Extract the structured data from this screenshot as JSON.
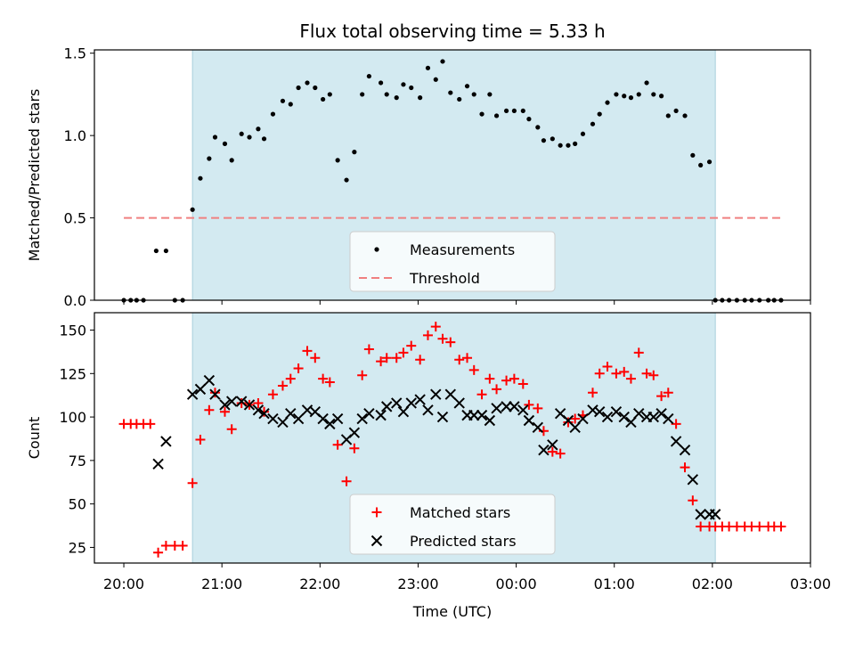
{
  "chart_data": [
    {
      "type": "scatter",
      "title": "Flux total observing time = 5.33 h",
      "xlabel": "",
      "ylabel": "Matched/Predicted stars",
      "xlim": [
        19.7,
        27.0
      ],
      "ylim": [
        0,
        1.52
      ],
      "yticks": [
        0.0,
        0.5,
        1.0,
        1.5
      ],
      "ytick_labels": [
        "0.0",
        "0.5",
        "1.0",
        "1.5"
      ],
      "x_time_unit": "hours since 20:00 UTC of first day (values > 24 wrap past midnight)",
      "shaded_interval": {
        "x": [
          20.7,
          26.03
        ],
        "color": "#d3eaf1"
      },
      "series": [
        {
          "name": "Measurements",
          "marker": "dot",
          "color": "#000000",
          "x": [
            20.0,
            20.07,
            20.13,
            20.2,
            20.33,
            20.43,
            20.52,
            20.6,
            20.7,
            20.78,
            20.87,
            20.93,
            21.03,
            21.1,
            21.2,
            21.28,
            21.37,
            21.43,
            21.52,
            21.62,
            21.7,
            21.78,
            21.87,
            21.95,
            22.03,
            22.1,
            22.18,
            22.27,
            22.35,
            22.43,
            22.5,
            22.62,
            22.68,
            22.78,
            22.85,
            22.93,
            23.02,
            23.1,
            23.18,
            23.25,
            23.33,
            23.42,
            23.5,
            23.57,
            23.65,
            23.73,
            23.8,
            23.9,
            23.98,
            24.07,
            24.13,
            24.22,
            24.28,
            24.37,
            24.45,
            24.53,
            24.6,
            24.68,
            24.78,
            24.85,
            24.93,
            25.02,
            25.1,
            25.17,
            25.25,
            25.33,
            25.4,
            25.48,
            25.55,
            25.63,
            25.72,
            25.8,
            25.88,
            25.97,
            26.03,
            26.1,
            26.17,
            26.25,
            26.33,
            26.4,
            26.48,
            26.57,
            26.63,
            26.7
          ],
          "y": [
            0.0,
            0.0,
            0.0,
            0.0,
            0.3,
            0.3,
            0.0,
            0.0,
            0.55,
            0.74,
            0.86,
            0.99,
            0.95,
            0.85,
            1.01,
            0.99,
            1.04,
            0.98,
            1.13,
            1.21,
            1.19,
            1.29,
            1.32,
            1.29,
            1.22,
            1.25,
            0.85,
            0.73,
            0.9,
            1.25,
            1.36,
            1.32,
            1.25,
            1.23,
            1.31,
            1.29,
            1.23,
            1.41,
            1.34,
            1.45,
            1.26,
            1.22,
            1.3,
            1.25,
            1.13,
            1.25,
            1.12,
            1.15,
            1.15,
            1.15,
            1.1,
            1.05,
            0.97,
            0.98,
            0.94,
            0.94,
            0.95,
            1.01,
            1.07,
            1.13,
            1.2,
            1.25,
            1.24,
            1.23,
            1.25,
            1.32,
            1.25,
            1.24,
            1.12,
            1.15,
            1.12,
            0.88,
            0.82,
            0.84,
            0.0,
            0.0,
            0.0,
            0.0,
            0.0,
            0.0,
            0.0,
            0.0,
            0.0,
            0.0
          ]
        },
        {
          "name": "Threshold",
          "marker": "dashed-line",
          "color": "#f08080",
          "x": [
            20.0,
            26.7
          ],
          "y": [
            0.5,
            0.5
          ]
        }
      ],
      "legend": {
        "placement": "bottom-center",
        "entries": [
          "Measurements",
          "Threshold"
        ]
      }
    },
    {
      "type": "scatter",
      "title": "",
      "xlabel": "Time (UTC)",
      "ylabel": "Count",
      "xlim": [
        19.7,
        27.0
      ],
      "ylim": [
        16,
        160
      ],
      "yticks": [
        25,
        50,
        75,
        100,
        125,
        150
      ],
      "ytick_labels": [
        "25",
        "50",
        "75",
        "100",
        "125",
        "150"
      ],
      "xticks": [
        20,
        21,
        22,
        23,
        24,
        25,
        26,
        27
      ],
      "xtick_labels": [
        "20:00",
        "21:00",
        "22:00",
        "23:00",
        "00:00",
        "01:00",
        "02:00",
        "03:00"
      ],
      "x_time_unit": "hours since 20:00 UTC of first day (values > 24 wrap past midnight)",
      "shaded_interval": {
        "x": [
          20.7,
          26.03
        ],
        "color": "#d3eaf1"
      },
      "series": [
        {
          "name": "Matched stars",
          "marker": "plus",
          "color": "#ff0000",
          "x": [
            20.0,
            20.07,
            20.13,
            20.2,
            20.27,
            20.35,
            20.43,
            20.52,
            20.6,
            20.7,
            20.78,
            20.87,
            20.93,
            21.03,
            21.1,
            21.2,
            21.28,
            21.37,
            21.43,
            21.52,
            21.62,
            21.7,
            21.78,
            21.87,
            21.95,
            22.03,
            22.1,
            22.18,
            22.27,
            22.35,
            22.43,
            22.5,
            22.62,
            22.68,
            22.78,
            22.85,
            22.93,
            23.02,
            23.1,
            23.18,
            23.25,
            23.33,
            23.42,
            23.5,
            23.57,
            23.65,
            23.73,
            23.8,
            23.9,
            23.98,
            24.07,
            24.13,
            24.22,
            24.28,
            24.37,
            24.45,
            24.53,
            24.6,
            24.68,
            24.78,
            24.85,
            24.93,
            25.02,
            25.1,
            25.17,
            25.25,
            25.33,
            25.4,
            25.48,
            25.55,
            25.63,
            25.72,
            25.8,
            25.88,
            25.97,
            26.03,
            26.1,
            26.17,
            26.25,
            26.33,
            26.4,
            26.48,
            26.57,
            26.63,
            26.7
          ],
          "y": [
            96,
            96,
            96,
            96,
            96,
            22,
            26,
            26,
            26,
            62,
            87,
            104,
            114,
            103,
            93,
            108,
            107,
            108,
            103,
            113,
            118,
            122,
            128,
            138,
            134,
            122,
            120,
            84,
            63,
            82,
            124,
            139,
            132,
            134,
            134,
            137,
            141,
            133,
            147,
            152,
            145,
            143,
            133,
            134,
            127,
            113,
            122,
            116,
            121,
            122,
            119,
            107,
            105,
            92,
            80,
            79,
            97,
            99,
            101,
            114,
            125,
            129,
            125,
            126,
            122,
            137,
            125,
            124,
            112,
            114,
            96,
            71,
            52,
            37,
            37,
            37,
            37,
            37,
            37,
            37,
            37,
            37,
            37,
            37,
            37
          ]
        },
        {
          "name": "Predicted stars",
          "marker": "x",
          "color": "#000000",
          "x": [
            20.35,
            20.43,
            20.7,
            20.78,
            20.87,
            20.93,
            21.03,
            21.1,
            21.2,
            21.28,
            21.37,
            21.43,
            21.52,
            21.62,
            21.7,
            21.78,
            21.87,
            21.95,
            22.03,
            22.1,
            22.18,
            22.27,
            22.35,
            22.43,
            22.5,
            22.62,
            22.68,
            22.78,
            22.85,
            22.93,
            23.02,
            23.1,
            23.18,
            23.25,
            23.33,
            23.42,
            23.5,
            23.57,
            23.65,
            23.73,
            23.8,
            23.9,
            23.98,
            24.07,
            24.13,
            24.22,
            24.28,
            24.37,
            24.45,
            24.53,
            24.6,
            24.68,
            24.78,
            24.85,
            24.93,
            25.02,
            25.1,
            25.17,
            25.25,
            25.33,
            25.4,
            25.48,
            25.55,
            25.63,
            25.72,
            25.8,
            25.88,
            25.97,
            26.03
          ],
          "y": [
            73,
            86,
            113,
            116,
            121,
            113,
            107,
            109,
            109,
            107,
            104,
            102,
            99,
            97,
            102,
            99,
            104,
            103,
            99,
            96,
            99,
            87,
            91,
            99,
            102,
            101,
            106,
            108,
            103,
            108,
            110,
            104,
            113,
            100,
            113,
            108,
            101,
            101,
            101,
            98,
            105,
            106,
            106,
            104,
            98,
            94,
            81,
            84,
            102,
            98,
            94,
            99,
            104,
            103,
            100,
            103,
            100,
            97,
            102,
            100,
            100,
            102,
            99,
            86,
            81,
            64,
            44,
            44,
            44
          ]
        }
      ],
      "legend": {
        "placement": "bottom-center",
        "entries": [
          "Matched stars",
          "Predicted stars"
        ]
      }
    }
  ]
}
